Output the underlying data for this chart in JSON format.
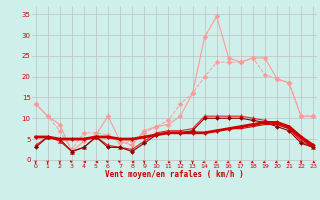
{
  "bg_color": "#cff0ea",
  "grid_color": "#bbbbbb",
  "xlabel": "Vent moyen/en rafales ( km/h )",
  "xlabel_color": "#cc0000",
  "ylabel_color": "#cc0000",
  "yticks": [
    0,
    5,
    10,
    15,
    20,
    25,
    30,
    35
  ],
  "xticks": [
    0,
    1,
    2,
    3,
    4,
    5,
    6,
    7,
    8,
    9,
    10,
    11,
    12,
    13,
    14,
    15,
    16,
    17,
    18,
    19,
    20,
    21,
    22,
    23
  ],
  "xlim": [
    -0.3,
    23.3
  ],
  "ylim": [
    -1.0,
    37
  ],
  "series": [
    {
      "x": [
        0,
        1,
        2,
        3,
        4,
        5,
        6,
        7,
        8,
        9,
        10,
        11,
        12,
        13,
        14,
        15,
        16,
        17,
        18,
        19,
        20,
        21,
        22,
        23
      ],
      "y": [
        13.5,
        10.5,
        8.5,
        2.0,
        4.5,
        6.0,
        10.5,
        4.5,
        3.5,
        7.0,
        8.0,
        8.5,
        10.5,
        16.0,
        29.5,
        34.5,
        24.5,
        23.5,
        24.5,
        24.5,
        19.5,
        18.5,
        10.5,
        10.5
      ],
      "color": "#ff9999",
      "marker": "D",
      "markersize": 2.5,
      "linewidth": 0.8,
      "linestyle": "-",
      "zorder": 3
    },
    {
      "x": [
        0,
        1,
        2,
        3,
        4,
        5,
        6,
        7,
        8,
        9,
        10,
        11,
        12,
        13,
        14,
        15,
        16,
        17,
        18,
        19,
        20,
        21,
        22,
        23
      ],
      "y": [
        13.5,
        10.5,
        7.0,
        2.5,
        6.5,
        6.5,
        6.0,
        4.0,
        4.5,
        6.5,
        8.0,
        9.5,
        13.5,
        16.0,
        20.0,
        23.5,
        23.5,
        23.5,
        24.5,
        20.5,
        19.5,
        18.5,
        10.5,
        10.5
      ],
      "color": "#ff9999",
      "marker": "D",
      "markersize": 2.5,
      "linewidth": 0.7,
      "linestyle": "--",
      "zorder": 3
    },
    {
      "x": [
        0,
        1,
        2,
        3,
        4,
        5,
        6,
        7,
        8,
        9,
        10,
        11,
        12,
        13,
        14,
        15,
        16,
        17,
        18,
        19,
        20,
        21,
        22,
        23
      ],
      "y": [
        3.5,
        5.5,
        4.5,
        2.0,
        3.0,
        5.5,
        3.5,
        3.0,
        2.5,
        4.5,
        6.5,
        7.0,
        7.0,
        7.5,
        10.5,
        10.5,
        10.5,
        10.5,
        10.0,
        9.5,
        8.5,
        7.5,
        4.5,
        3.0
      ],
      "color": "#dd2222",
      "marker": "^",
      "markersize": 3,
      "linewidth": 0.8,
      "linestyle": "-",
      "zorder": 4
    },
    {
      "x": [
        0,
        1,
        2,
        3,
        4,
        5,
        6,
        7,
        8,
        9,
        10,
        11,
        12,
        13,
        14,
        15,
        16,
        17,
        18,
        19,
        20,
        21,
        22,
        23
      ],
      "y": [
        5.5,
        5.5,
        5.0,
        5.0,
        5.0,
        5.5,
        5.5,
        5.0,
        5.0,
        5.5,
        6.0,
        6.5,
        6.5,
        6.5,
        6.5,
        7.0,
        7.5,
        8.0,
        8.5,
        9.0,
        9.0,
        8.0,
        5.5,
        3.5
      ],
      "color": "#cc0000",
      "marker": "D",
      "markersize": 2,
      "linewidth": 2.0,
      "linestyle": "-",
      "zorder": 5
    },
    {
      "x": [
        0,
        1,
        2,
        3,
        4,
        5,
        6,
        7,
        8,
        9,
        10,
        11,
        12,
        13,
        14,
        15,
        16,
        17,
        18,
        19,
        20,
        21,
        22,
        23
      ],
      "y": [
        5.5,
        5.5,
        5.0,
        5.0,
        5.0,
        5.5,
        5.5,
        5.0,
        5.0,
        5.5,
        6.0,
        6.5,
        6.5,
        6.5,
        6.5,
        7.0,
        7.5,
        7.5,
        8.0,
        8.5,
        8.5,
        7.5,
        5.0,
        3.0
      ],
      "color": "#cc0000",
      "marker": null,
      "markersize": 0,
      "linewidth": 0.8,
      "linestyle": "-",
      "zorder": 5
    },
    {
      "x": [
        0,
        1,
        2,
        3,
        4,
        5,
        6,
        7,
        8,
        9,
        10,
        11,
        12,
        13,
        14,
        15,
        16,
        17,
        18,
        19,
        20,
        21,
        22,
        23
      ],
      "y": [
        3.0,
        5.5,
        5.0,
        2.0,
        3.0,
        5.5,
        3.0,
        3.0,
        2.0,
        4.0,
        6.0,
        6.5,
        6.5,
        7.0,
        10.0,
        10.0,
        10.0,
        10.0,
        9.5,
        9.0,
        8.0,
        7.0,
        4.0,
        3.0
      ],
      "color": "#880000",
      "marker": "D",
      "markersize": 2,
      "linewidth": 0.8,
      "linestyle": "-",
      "zorder": 4
    }
  ],
  "arrow_angles": [
    0,
    0,
    0,
    225,
    270,
    270,
    225,
    225,
    270,
    0,
    0,
    45,
    0,
    0,
    315,
    315,
    315,
    315,
    315,
    315,
    315,
    315,
    0,
    45
  ]
}
